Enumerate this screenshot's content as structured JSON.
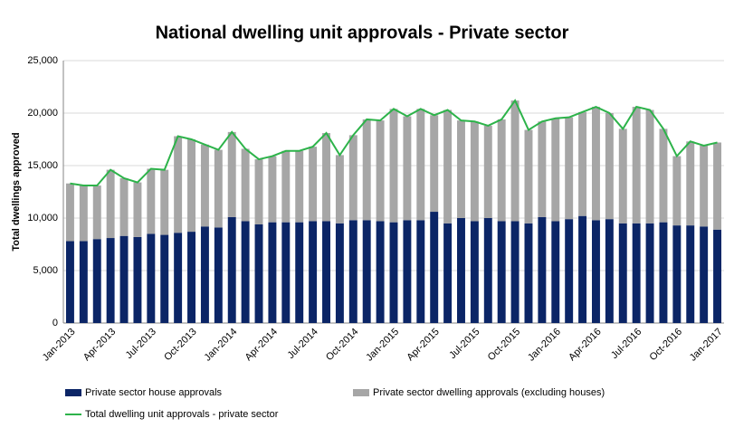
{
  "chart_data": {
    "type": "bar",
    "stacked": true,
    "grid": true,
    "legend": "bottom",
    "title": "National dwelling unit approvals - Private sector",
    "y_label": "Total dwellings approved",
    "categories": [
      "Jan-2013",
      null,
      null,
      "Apr-2013",
      null,
      null,
      "Jul-2013",
      null,
      null,
      "Oct-2013",
      null,
      null,
      "Jan-2014",
      null,
      null,
      "Apr-2014",
      null,
      null,
      "Jul-2014",
      null,
      null,
      "Oct-2014",
      null,
      null,
      "Jan-2015",
      null,
      null,
      "Apr-2015",
      null,
      null,
      "Jul-2015",
      null,
      null,
      "Oct-2015",
      null,
      null,
      "Jan-2016",
      null,
      null,
      "Apr-2016",
      null,
      null,
      "Jul-2016",
      null,
      null,
      "Oct-2016",
      null,
      null,
      "Jan-2017"
    ],
    "ylim": [
      0,
      25000
    ],
    "yticks": [
      0,
      {
        "value": 5000,
        "label": "5,000"
      },
      {
        "value": 10000,
        "label": "10,000"
      },
      {
        "value": 15000,
        "label": "15,000"
      },
      {
        "value": 20000,
        "label": "20,000"
      },
      {
        "value": 25000,
        "label": "25,000"
      }
    ],
    "series": [
      {
        "name": "Private sector house approvals",
        "type": "bar",
        "color": "#0b2566",
        "values": [
          7800,
          7800,
          8000,
          8100,
          8300,
          8200,
          8500,
          8400,
          8600,
          8700,
          9200,
          9100,
          10100,
          9700,
          9400,
          9600,
          9600,
          9600,
          9700,
          9700,
          9500,
          9800,
          9800,
          9700,
          9600,
          9800,
          9800,
          10600,
          9500,
          10000,
          9700,
          10000,
          9700,
          9700,
          9500,
          10100,
          9700,
          9900,
          10200,
          9800,
          9900,
          9500,
          9500,
          9500,
          9600,
          9300,
          9300,
          9200,
          8900
        ]
      },
      {
        "name": "Private sector dwelling approvals (excluding houses)",
        "type": "bar",
        "color": "#a6a6a6",
        "values": [
          5500,
          5300,
          5100,
          6500,
          5500,
          5200,
          6200,
          6200,
          9200,
          8800,
          7800,
          7400,
          8100,
          6900,
          6200,
          6300,
          6800,
          6800,
          7100,
          8400,
          6500,
          8100,
          9600,
          9600,
          10800,
          9900,
          10600,
          9200,
          10800,
          9300,
          9500,
          8800,
          9700,
          11500,
          8900,
          9100,
          9800,
          9700,
          9900,
          10800,
          10100,
          9000,
          11100,
          10800,
          8900,
          6600,
          8000,
          7700,
          8300
        ]
      },
      {
        "name": "Total dwelling unit approvals - private sector",
        "type": "line",
        "color": "#2db34a",
        "values": [
          13300,
          13100,
          13100,
          14600,
          13800,
          13400,
          14700,
          14600,
          17800,
          17500,
          17000,
          16500,
          18200,
          16600,
          15600,
          15900,
          16400,
          16400,
          16800,
          18100,
          16000,
          17900,
          19400,
          19300,
          20400,
          19700,
          20400,
          19800,
          20300,
          19300,
          19200,
          18800,
          19400,
          21200,
          18400,
          19200,
          19500,
          19600,
          20100,
          20600,
          20000,
          18500,
          20600,
          20300,
          18500,
          15900,
          17300,
          16900,
          17200
        ]
      }
    ]
  }
}
